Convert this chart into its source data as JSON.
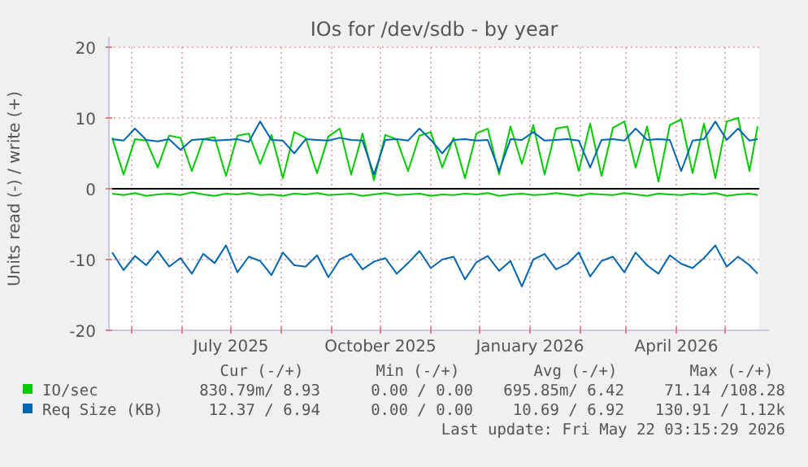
{
  "chart_data": {
    "type": "line",
    "title": "IOs for /dev/sdb - by year",
    "ylabel": "Units read (-) / write (+)",
    "x": [
      "2025-04-19",
      "2025-04-26",
      "2025-05-03",
      "2025-05-10",
      "2025-05-17",
      "2025-05-24",
      "2025-05-31",
      "2025-06-07",
      "2025-06-14",
      "2025-06-21",
      "2025-06-28",
      "2025-07-05",
      "2025-07-12",
      "2025-07-19",
      "2025-07-26",
      "2025-08-02",
      "2025-08-09",
      "2025-08-16",
      "2025-08-23",
      "2025-08-30",
      "2025-09-06",
      "2025-09-13",
      "2025-09-20",
      "2025-09-27",
      "2025-10-04",
      "2025-10-11",
      "2025-10-18",
      "2025-10-25",
      "2025-11-01",
      "2025-11-08",
      "2025-11-15",
      "2025-11-22",
      "2025-11-29",
      "2025-12-06",
      "2025-12-13",
      "2025-12-20",
      "2025-12-27",
      "2026-01-03",
      "2026-01-10",
      "2026-01-17",
      "2026-01-24",
      "2026-01-31",
      "2026-02-07",
      "2026-02-14",
      "2026-02-21",
      "2026-02-28",
      "2026-03-07",
      "2026-03-14",
      "2026-03-21",
      "2026-03-28",
      "2026-04-04",
      "2026-04-11",
      "2026-04-18",
      "2026-04-25",
      "2026-05-02",
      "2026-05-09",
      "2026-05-16",
      "2026-05-21"
    ],
    "series": [
      {
        "name": "IO/sec",
        "color": "#00cc00",
        "values": [
          7.2,
          2.0,
          7.0,
          6.8,
          3.0,
          7.5,
          7.2,
          2.5,
          7.0,
          7.3,
          1.8,
          7.5,
          7.8,
          3.5,
          7.6,
          1.5,
          8.0,
          7.2,
          2.2,
          7.4,
          8.5,
          2.0,
          7.8,
          1.2,
          7.6,
          7.0,
          2.5,
          7.5,
          8.0,
          3.0,
          7.2,
          1.5,
          7.8,
          8.5,
          2.0,
          8.8,
          3.5,
          9.0,
          2.0,
          8.5,
          8.8,
          2.5,
          9.2,
          1.8,
          8.6,
          9.5,
          3.0,
          8.8,
          1.0,
          9.0,
          9.8,
          2.2,
          9.2,
          1.5,
          9.5,
          10.0,
          2.5,
          8.8
        ]
      },
      {
        "color": "#00cc00",
        "values": [
          -0.7,
          -0.9,
          -0.6,
          -1.0,
          -0.8,
          -0.7,
          -0.9,
          -0.5,
          -0.8,
          -1.0,
          -0.7,
          -0.8,
          -0.6,
          -0.9,
          -0.8,
          -1.0,
          -0.7,
          -0.8,
          -0.6,
          -0.9,
          -0.8,
          -0.7,
          -1.0,
          -0.8,
          -0.6,
          -0.9,
          -0.8,
          -0.7,
          -1.0,
          -0.8,
          -0.9,
          -0.7,
          -0.8,
          -0.6,
          -1.0,
          -0.8,
          -0.7,
          -0.9,
          -0.8,
          -0.6,
          -0.8,
          -1.0,
          -0.7,
          -0.8,
          -0.9,
          -0.6,
          -0.8,
          -1.0,
          -0.7,
          -0.8,
          -0.9,
          -0.7,
          -0.8,
          -0.6,
          -1.0,
          -0.8,
          -0.7,
          -0.9
        ]
      },
      {
        "name": "Req Size (KB)",
        "color": "#0066b3",
        "values": [
          7.0,
          6.8,
          8.5,
          6.9,
          6.7,
          7.0,
          5.5,
          6.9,
          7.0,
          6.8,
          6.9,
          7.0,
          6.6,
          9.5,
          6.9,
          6.8,
          5.0,
          7.0,
          6.9,
          6.8,
          7.2,
          6.9,
          6.8,
          2.0,
          6.9,
          7.0,
          6.8,
          8.5,
          6.9,
          5.0,
          6.9,
          7.0,
          6.8,
          6.9,
          2.5,
          7.0,
          6.9,
          8.0,
          6.8,
          6.9,
          7.0,
          6.8,
          3.0,
          6.9,
          7.0,
          6.8,
          8.5,
          6.9,
          7.0,
          6.9,
          2.5,
          6.8,
          7.0,
          9.5,
          6.9,
          8.5,
          6.8,
          7.0
        ]
      },
      {
        "color": "#0066b3",
        "values": [
          -9.0,
          -11.5,
          -9.5,
          -10.8,
          -8.8,
          -11.0,
          -9.8,
          -12.0,
          -9.2,
          -10.5,
          -8.0,
          -11.8,
          -9.6,
          -10.2,
          -12.2,
          -9.0,
          -10.8,
          -11.0,
          -9.4,
          -12.5,
          -10.0,
          -9.2,
          -11.4,
          -10.3,
          -9.8,
          -12.0,
          -10.5,
          -8.8,
          -11.2,
          -10.0,
          -9.6,
          -12.8,
          -10.4,
          -9.5,
          -11.6,
          -10.2,
          -13.8,
          -10.0,
          -9.2,
          -11.4,
          -10.6,
          -9.0,
          -12.4,
          -10.2,
          -9.6,
          -11.8,
          -9.0,
          -10.8,
          -12.0,
          -9.4,
          -10.6,
          -11.2,
          -9.8,
          -8.0,
          -11.0,
          -9.6,
          -10.8,
          -12.0
        ]
      }
    ],
    "xlim": [
      "2025-04-17",
      "2026-05-22"
    ],
    "xticks": [
      {
        "value": "2025-05-01",
        "label": null
      },
      {
        "value": "2025-06-01",
        "label": null
      },
      {
        "value": "2025-07-01",
        "label": "July 2025"
      },
      {
        "value": "2025-08-01",
        "label": null
      },
      {
        "value": "2025-09-01",
        "label": null
      },
      {
        "value": "2025-10-01",
        "label": "October 2025"
      },
      {
        "value": "2025-11-01",
        "label": null
      },
      {
        "value": "2025-12-01",
        "label": null
      },
      {
        "value": "2026-01-01",
        "label": "January 2026"
      },
      {
        "value": "2026-02-01",
        "label": null
      },
      {
        "value": "2026-03-01",
        "label": null
      },
      {
        "value": "2026-04-01",
        "label": "April 2026"
      },
      {
        "value": "2026-05-01",
        "label": null
      }
    ],
    "ylim": [
      -20,
      20
    ],
    "yticks": [
      -20,
      -10,
      0,
      10,
      20
    ],
    "grid": true,
    "ref_lines": [
      {
        "axis": "y",
        "value": 0,
        "color": "#000000"
      }
    ],
    "legend": "bottom",
    "annotations": [
      "Cur (-/+)",
      "Min (-/+)",
      "Avg (-/+)",
      "Max (-/+)",
      "830.79m/ 8.93",
      "0.00 / 0.00",
      "695.85m/ 6.42",
      "71.14 /108.28",
      "12.37 / 6.94",
      "0.00 / 0.00",
      "10.69 / 6.92",
      "130.91 / 1.12k",
      "Last update: Fri May 22 03:15:29 2026"
    ]
  }
}
